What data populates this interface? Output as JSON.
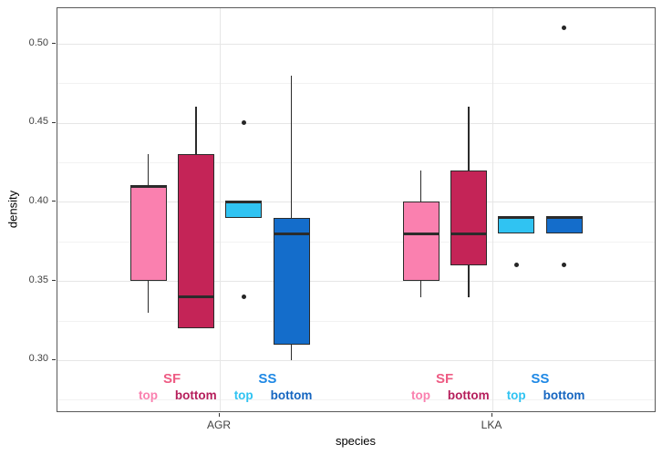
{
  "chart_data": {
    "type": "boxplot",
    "title": "",
    "xlabel": "species",
    "ylabel": "density",
    "categories": [
      "AGR",
      "LKA"
    ],
    "y_ticks": [
      0.3,
      0.35,
      0.4,
      0.45,
      0.5
    ],
    "y_minor_ticks": [
      0.275,
      0.325,
      0.375,
      0.425,
      0.475
    ],
    "ylim": [
      0.2665,
      0.5225
    ],
    "grid": "horizontal major+minor, vertical major at categories",
    "legend_position": "inside-bottom-per-category",
    "groups": [
      {
        "key": "sf_top",
        "series": "SF",
        "layer": "top",
        "fill": "#FA80AF"
      },
      {
        "key": "sf_bottom",
        "series": "SF",
        "layer": "bottom",
        "fill": "#C42457"
      },
      {
        "key": "ss_top",
        "series": "SS",
        "layer": "top",
        "fill": "#30C3F2"
      },
      {
        "key": "ss_bottom",
        "series": "SS",
        "layer": "bottom",
        "fill": "#146DCB"
      }
    ],
    "boxes": [
      {
        "species": "AGR",
        "key": "sf_top",
        "whisker_low": 0.33,
        "q1": 0.35,
        "median": 0.41,
        "q3": 0.41,
        "whisker_high": 0.43,
        "outliers": []
      },
      {
        "species": "AGR",
        "key": "sf_bottom",
        "whisker_low": 0.32,
        "q1": 0.32,
        "median": 0.34,
        "q3": 0.43,
        "whisker_high": 0.46,
        "outliers": []
      },
      {
        "species": "AGR",
        "key": "ss_top",
        "whisker_low": 0.39,
        "q1": 0.39,
        "median": 0.4,
        "q3": 0.4,
        "whisker_high": 0.4,
        "outliers": [
          0.45,
          0.34
        ]
      },
      {
        "species": "AGR",
        "key": "ss_bottom",
        "whisker_low": 0.3,
        "q1": 0.31,
        "median": 0.38,
        "q3": 0.39,
        "whisker_high": 0.48,
        "outliers": []
      },
      {
        "species": "LKA",
        "key": "sf_top",
        "whisker_low": 0.34,
        "q1": 0.35,
        "median": 0.38,
        "q3": 0.4,
        "whisker_high": 0.42,
        "outliers": []
      },
      {
        "species": "LKA",
        "key": "sf_bottom",
        "whisker_low": 0.34,
        "q1": 0.36,
        "median": 0.38,
        "q3": 0.42,
        "whisker_high": 0.46,
        "outliers": []
      },
      {
        "species": "LKA",
        "key": "ss_top",
        "whisker_low": 0.38,
        "q1": 0.38,
        "median": 0.39,
        "q3": 0.39,
        "whisker_high": 0.39,
        "outliers": [
          0.36
        ]
      },
      {
        "species": "LKA",
        "key": "ss_bottom",
        "whisker_low": 0.38,
        "q1": 0.38,
        "median": 0.39,
        "q3": 0.39,
        "whisker_high": 0.39,
        "outliers": [
          0.51,
          0.36
        ]
      }
    ],
    "annotations": {
      "SF": {
        "label": "SF",
        "label_color": "#EE5C84",
        "top": {
          "text": "top",
          "color": "#FA80AF"
        },
        "bottom": {
          "text": "bottom",
          "color": "#B51E5B"
        }
      },
      "SS": {
        "label": "SS",
        "label_color": "#1E88E5",
        "top": {
          "text": "top",
          "color": "#30C3F2"
        },
        "bottom": {
          "text": "bottom",
          "color": "#1565C0"
        }
      }
    }
  }
}
